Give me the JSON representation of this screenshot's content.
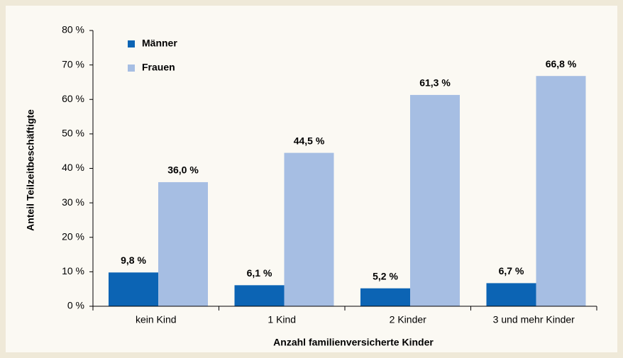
{
  "chart_data": {
    "type": "bar",
    "x_label": "Anzahl familienversicherte Kinder",
    "y_label": "Anteil Teilzeitbeschäftigte",
    "categories": [
      "kein Kind",
      "1 Kind",
      "2 Kinder",
      "3 und mehr Kinder"
    ],
    "series": [
      {
        "name": "Männer",
        "color": "#0c64b4",
        "values": [
          9.8,
          6.1,
          5.2,
          6.7
        ],
        "value_labels": [
          "9,8 %",
          "6,1 %",
          "5,2 %",
          "6,7 %"
        ]
      },
      {
        "name": "Frauen",
        "color": "#a6bee3",
        "values": [
          36.0,
          44.5,
          61.3,
          66.8
        ],
        "value_labels": [
          "36,0 %",
          "44,5 %",
          "61,3 %",
          "66,8 %"
        ]
      }
    ],
    "ylim": [
      0,
      80
    ],
    "yticks": [
      {
        "value": 0,
        "label": "0 %"
      },
      {
        "value": 10,
        "label": "10 %"
      },
      {
        "value": 20,
        "label": "20 %"
      },
      {
        "value": 30,
        "label": "30 %"
      },
      {
        "value": 40,
        "label": "40 %"
      },
      {
        "value": 50,
        "label": "50 %"
      },
      {
        "value": 60,
        "label": "60 %"
      },
      {
        "value": 70,
        "label": "70 %"
      },
      {
        "value": 80,
        "label": "80 %"
      }
    ],
    "legend": "top-left"
  }
}
